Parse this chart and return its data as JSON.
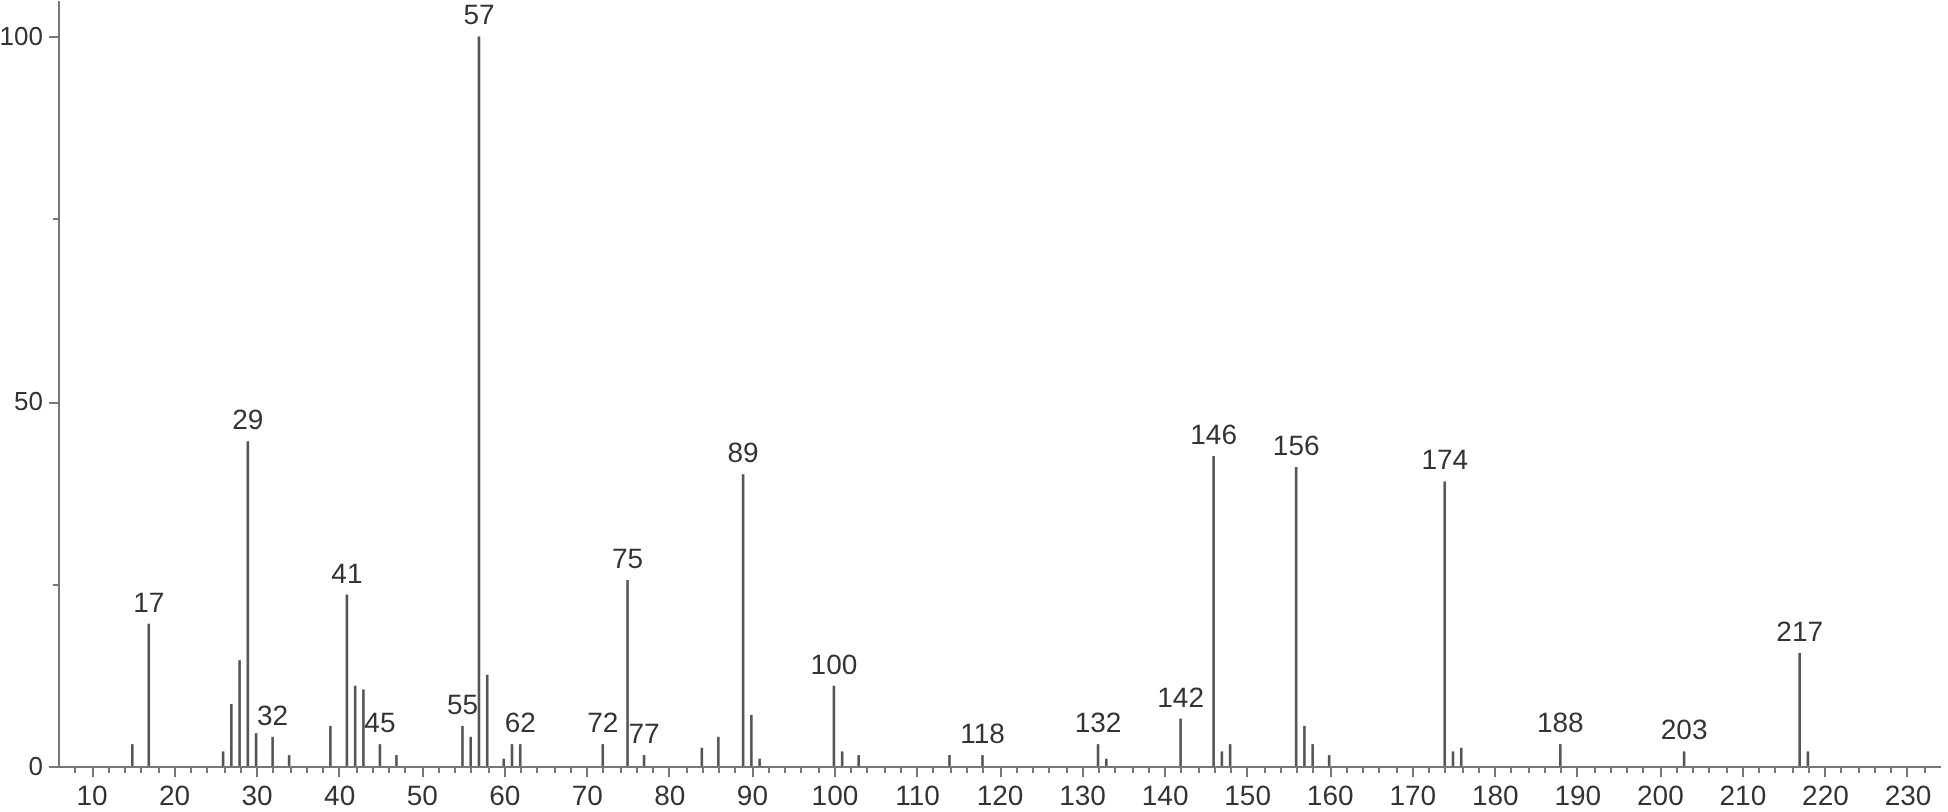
{
  "chart_data": {
    "type": "bar",
    "color": "#555555",
    "x": [
      15,
      17,
      26,
      27,
      28,
      29,
      30,
      32,
      34,
      39,
      41,
      42,
      43,
      45,
      47,
      55,
      56,
      57,
      58,
      60,
      61,
      62,
      72,
      75,
      77,
      84,
      86,
      89,
      90,
      91,
      100,
      101,
      103,
      114,
      118,
      132,
      133,
      142,
      146,
      147,
      148,
      156,
      157,
      158,
      160,
      174,
      175,
      176,
      188,
      203,
      217,
      218
    ],
    "values": [
      3,
      19.5,
      2,
      8.5,
      14.5,
      44.5,
      4.5,
      4,
      1.5,
      5.5,
      23.5,
      11,
      10.5,
      3,
      1.5,
      5.5,
      4,
      100,
      12.5,
      1,
      3,
      3,
      3,
      25.5,
      1.5,
      2.5,
      4,
      40,
      7,
      1,
      11,
      2,
      1.5,
      1.5,
      1.5,
      3,
      1,
      6.5,
      42.5,
      2,
      3,
      41,
      5.5,
      3,
      1.5,
      39,
      2,
      2.5,
      3,
      2,
      15.5,
      2
    ],
    "annotations": [
      {
        "text": "17",
        "x": 17,
        "y": 19.5
      },
      {
        "text": "29",
        "x": 29,
        "y": 44.5
      },
      {
        "text": "32",
        "x": 32,
        "y": 4
      },
      {
        "text": "41",
        "x": 41,
        "y": 23.5
      },
      {
        "text": "45",
        "x": 45,
        "y": 3
      },
      {
        "text": "55",
        "x": 55,
        "y": 5.5
      },
      {
        "text": "57",
        "x": 57,
        "y": 100
      },
      {
        "text": "62",
        "x": 62,
        "y": 3
      },
      {
        "text": "72",
        "x": 72,
        "y": 3
      },
      {
        "text": "75",
        "x": 75,
        "y": 25.5
      },
      {
        "text": "77",
        "x": 77,
        "y": 1.5
      },
      {
        "text": "89",
        "x": 89,
        "y": 40
      },
      {
        "text": "100",
        "x": 100,
        "y": 11
      },
      {
        "text": "118",
        "x": 118,
        "y": 1.5
      },
      {
        "text": "132",
        "x": 132,
        "y": 3
      },
      {
        "text": "142",
        "x": 142,
        "y": 6.5
      },
      {
        "text": "146",
        "x": 146,
        "y": 42.5
      },
      {
        "text": "156",
        "x": 156,
        "y": 41
      },
      {
        "text": "174",
        "x": 174,
        "y": 39
      },
      {
        "text": "188",
        "x": 188,
        "y": 3
      },
      {
        "text": "203",
        "x": 203,
        "y": 2
      },
      {
        "text": "217",
        "x": 217,
        "y": 15.5
      }
    ],
    "xlim": [
      6,
      234
    ],
    "xticks": [
      {
        "value": 8,
        "label": null
      },
      10,
      {
        "value": 12,
        "label": null
      },
      {
        "value": 14,
        "label": null
      },
      {
        "value": 16,
        "label": null
      },
      {
        "value": 18,
        "label": null
      },
      20,
      {
        "value": 22,
        "label": null
      },
      {
        "value": 24,
        "label": null
      },
      {
        "value": 26,
        "label": null
      },
      {
        "value": 28,
        "label": null
      },
      30,
      {
        "value": 32,
        "label": null
      },
      {
        "value": 34,
        "label": null
      },
      {
        "value": 36,
        "label": null
      },
      {
        "value": 38,
        "label": null
      },
      40,
      {
        "value": 42,
        "label": null
      },
      {
        "value": 44,
        "label": null
      },
      {
        "value": 46,
        "label": null
      },
      {
        "value": 48,
        "label": null
      },
      50,
      {
        "value": 52,
        "label": null
      },
      {
        "value": 54,
        "label": null
      },
      {
        "value": 56,
        "label": null
      },
      {
        "value": 58,
        "label": null
      },
      60,
      {
        "value": 62,
        "label": null
      },
      {
        "value": 64,
        "label": null
      },
      {
        "value": 66,
        "label": null
      },
      {
        "value": 68,
        "label": null
      },
      70,
      {
        "value": 72,
        "label": null
      },
      {
        "value": 74,
        "label": null
      },
      {
        "value": 76,
        "label": null
      },
      {
        "value": 78,
        "label": null
      },
      80,
      {
        "value": 82,
        "label": null
      },
      {
        "value": 84,
        "label": null
      },
      {
        "value": 86,
        "label": null
      },
      {
        "value": 88,
        "label": null
      },
      90,
      {
        "value": 92,
        "label": null
      },
      {
        "value": 94,
        "label": null
      },
      {
        "value": 96,
        "label": null
      },
      {
        "value": 98,
        "label": null
      },
      100,
      {
        "value": 102,
        "label": null
      },
      {
        "value": 104,
        "label": null
      },
      {
        "value": 106,
        "label": null
      },
      {
        "value": 108,
        "label": null
      },
      110,
      {
        "value": 112,
        "label": null
      },
      {
        "value": 114,
        "label": null
      },
      {
        "value": 116,
        "label": null
      },
      {
        "value": 118,
        "label": null
      },
      120,
      {
        "value": 122,
        "label": null
      },
      {
        "value": 124,
        "label": null
      },
      {
        "value": 126,
        "label": null
      },
      {
        "value": 128,
        "label": null
      },
      130,
      {
        "value": 132,
        "label": null
      },
      {
        "value": 134,
        "label": null
      },
      {
        "value": 136,
        "label": null
      },
      {
        "value": 138,
        "label": null
      },
      140,
      {
        "value": 142,
        "label": null
      },
      {
        "value": 144,
        "label": null
      },
      {
        "value": 146,
        "label": null
      },
      {
        "value": 148,
        "label": null
      },
      150,
      {
        "value": 152,
        "label": null
      },
      {
        "value": 154,
        "label": null
      },
      {
        "value": 156,
        "label": null
      },
      {
        "value": 158,
        "label": null
      },
      160,
      {
        "value": 162,
        "label": null
      },
      {
        "value": 164,
        "label": null
      },
      {
        "value": 166,
        "label": null
      },
      {
        "value": 168,
        "label": null
      },
      170,
      {
        "value": 172,
        "label": null
      },
      {
        "value": 174,
        "label": null
      },
      {
        "value": 176,
        "label": null
      },
      {
        "value": 178,
        "label": null
      },
      180,
      {
        "value": 182,
        "label": null
      },
      {
        "value": 184,
        "label": null
      },
      {
        "value": 186,
        "label": null
      },
      {
        "value": 188,
        "label": null
      },
      190,
      {
        "value": 192,
        "label": null
      },
      {
        "value": 194,
        "label": null
      },
      {
        "value": 196,
        "label": null
      },
      {
        "value": 198,
        "label": null
      },
      200,
      {
        "value": 202,
        "label": null
      },
      {
        "value": 204,
        "label": null
      },
      {
        "value": 206,
        "label": null
      },
      {
        "value": 208,
        "label": null
      },
      210,
      {
        "value": 212,
        "label": null
      },
      {
        "value": 214,
        "label": null
      },
      {
        "value": 216,
        "label": null
      },
      {
        "value": 218,
        "label": null
      },
      220,
      {
        "value": 222,
        "label": null
      },
      {
        "value": 224,
        "label": null
      },
      {
        "value": 226,
        "label": null
      },
      {
        "value": 228,
        "label": null
      },
      230,
      {
        "value": 232,
        "label": null
      }
    ],
    "ylim": [
      0,
      105
    ],
    "yticks": [
      0,
      {
        "value": 25,
        "label": null
      },
      50,
      {
        "value": 75,
        "label": null
      },
      100
    ]
  }
}
